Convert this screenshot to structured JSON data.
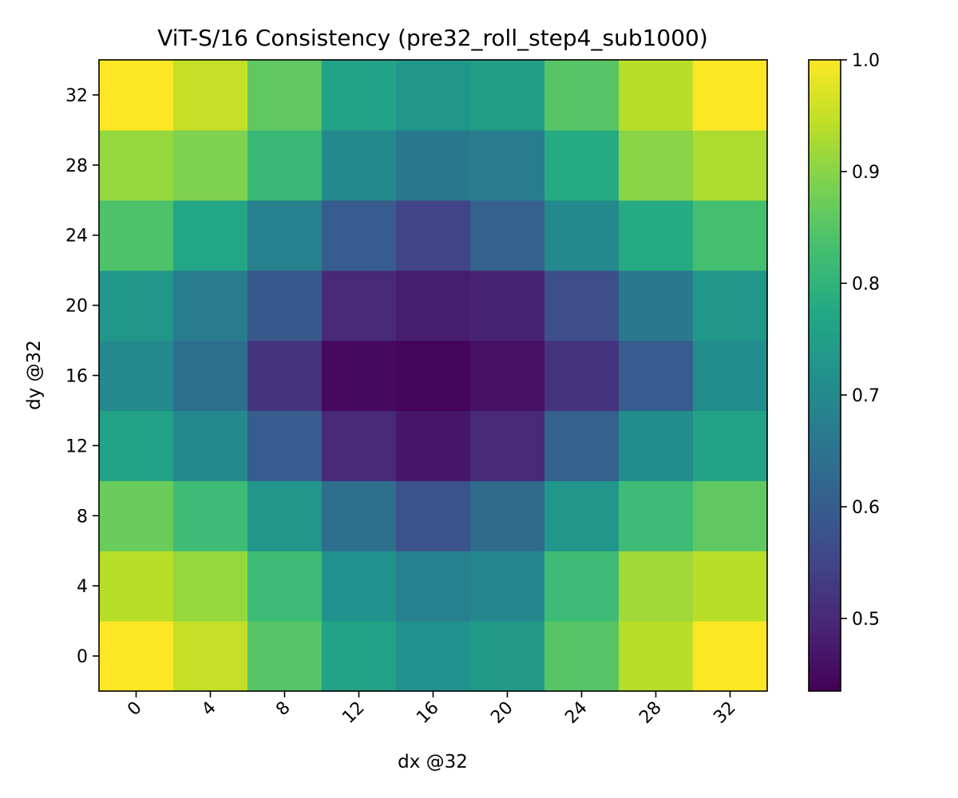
{
  "chart_data": {
    "type": "heatmap",
    "title": "ViT-S/16 Consistency (pre32_roll_step4_sub1000)",
    "xlabel": "dx @32",
    "ylabel": "dy @32",
    "x_ticks": [
      "0",
      "4",
      "8",
      "12",
      "16",
      "20",
      "24",
      "28",
      "32"
    ],
    "y_ticks": [
      "0",
      "4",
      "8",
      "12",
      "16",
      "20",
      "24",
      "28",
      "32"
    ],
    "colormap": "viridis",
    "colorbar_range": [
      0.435,
      1.0
    ],
    "colorbar_ticks": [
      "0.5",
      "0.6",
      "0.7",
      "0.8",
      "0.9",
      "1.0"
    ],
    "colorbar_tick_values": [
      0.5,
      0.6,
      0.7,
      0.8,
      0.9,
      1.0
    ],
    "values_rows_dy_ascending": [
      [
        1.0,
        0.95,
        0.85,
        0.76,
        0.72,
        0.74,
        0.85,
        0.94,
        1.0
      ],
      [
        0.94,
        0.91,
        0.82,
        0.72,
        0.68,
        0.69,
        0.82,
        0.92,
        0.94
      ],
      [
        0.87,
        0.82,
        0.73,
        0.64,
        0.58,
        0.63,
        0.73,
        0.82,
        0.86
      ],
      [
        0.76,
        0.7,
        0.6,
        0.5,
        0.47,
        0.5,
        0.61,
        0.71,
        0.76
      ],
      [
        0.7,
        0.64,
        0.52,
        0.45,
        0.44,
        0.46,
        0.52,
        0.6,
        0.71
      ],
      [
        0.73,
        0.67,
        0.59,
        0.5,
        0.48,
        0.49,
        0.57,
        0.66,
        0.73
      ],
      [
        0.84,
        0.77,
        0.68,
        0.6,
        0.55,
        0.61,
        0.7,
        0.78,
        0.83
      ],
      [
        0.91,
        0.89,
        0.81,
        0.7,
        0.66,
        0.67,
        0.78,
        0.9,
        0.93
      ],
      [
        1.0,
        0.95,
        0.86,
        0.76,
        0.73,
        0.75,
        0.85,
        0.94,
        1.0
      ]
    ]
  }
}
